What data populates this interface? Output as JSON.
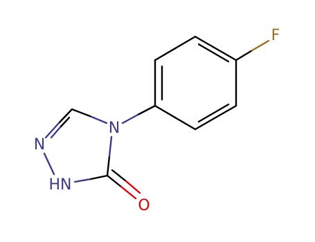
{
  "atoms": [
    {
      "label": "F"
    },
    {
      "label": "N"
    },
    {
      "label": "N"
    },
    {
      "label": "HN"
    },
    {
      "label": "O"
    }
  ]
}
